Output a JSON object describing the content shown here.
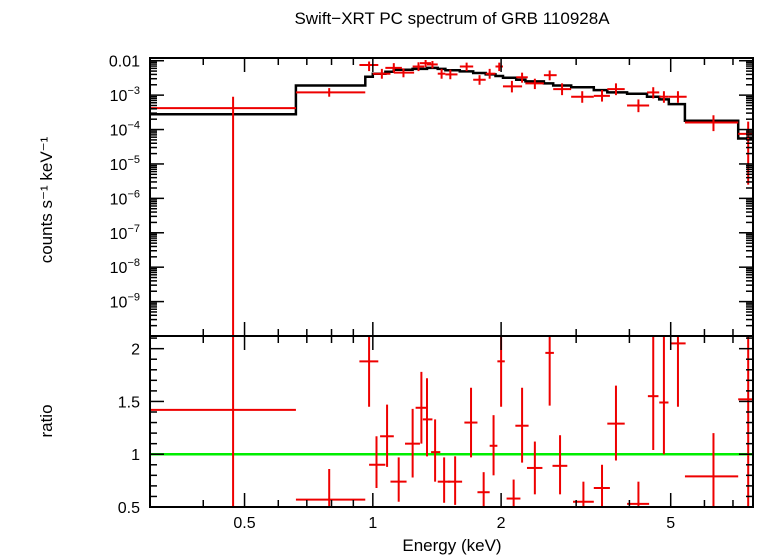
{
  "chart_data": [
    {
      "type": "scatter",
      "title": "Swift−XRT PC spectrum of GRB 110928A",
      "ylabel": "counts s⁻¹ keV⁻¹",
      "xscale": "log",
      "yscale": "log",
      "xlim": [
        0.3,
        7.8
      ],
      "ylim": [
        1e-10,
        0.012
      ],
      "yticks": [
        {
          "value": 0.01,
          "label": "0.01"
        },
        {
          "value": 0.001,
          "base": "10",
          "exp": "−3"
        },
        {
          "value": 0.0001,
          "base": "10",
          "exp": "−4"
        },
        {
          "value": 1e-05,
          "base": "10",
          "exp": "−5"
        },
        {
          "value": 1e-06,
          "base": "10",
          "exp": "−6"
        },
        {
          "value": 1e-07,
          "base": "10",
          "exp": "−7"
        },
        {
          "value": 1e-08,
          "base": "10",
          "exp": "−8"
        },
        {
          "value": 1e-09,
          "base": "10",
          "exp": "−9"
        }
      ],
      "data_color": "#ee0000",
      "model_color": "#000000",
      "series": [
        {
          "kind": "data",
          "points": [
            {
              "x": 0.47,
              "xlo": 0.3,
              "xhi": 0.66,
              "y": 0.00042,
              "ylo": 1e-10,
              "yhi": 0.0009
            },
            {
              "x": 0.79,
              "xlo": 0.66,
              "xhi": 0.96,
              "y": 0.0012,
              "ylo": 0.0009,
              "yhi": 0.0016
            },
            {
              "x": 0.98,
              "xlo": 0.93,
              "xhi": 1.03,
              "y": 0.0075,
              "ylo": 0.005,
              "yhi": 0.0095
            },
            {
              "x": 1.05,
              "xlo": 1.0,
              "xhi": 1.1,
              "y": 0.0042,
              "ylo": 0.003,
              "yhi": 0.0058
            },
            {
              "x": 1.12,
              "xlo": 1.07,
              "xhi": 1.17,
              "y": 0.0062,
              "ylo": 0.0045,
              "yhi": 0.0085
            },
            {
              "x": 1.18,
              "xlo": 1.12,
              "xhi": 1.25,
              "y": 0.0045,
              "ylo": 0.0033,
              "yhi": 0.006
            },
            {
              "x": 1.28,
              "xlo": 1.24,
              "xhi": 1.32,
              "y": 0.0068,
              "ylo": 0.005,
              "yhi": 0.009
            },
            {
              "x": 1.33,
              "xlo": 1.29,
              "xhi": 1.37,
              "y": 0.0085,
              "ylo": 0.0065,
              "yhi": 0.0105
            },
            {
              "x": 1.38,
              "xlo": 1.34,
              "xhi": 1.42,
              "y": 0.0078,
              "ylo": 0.006,
              "yhi": 0.0098
            },
            {
              "x": 1.45,
              "xlo": 1.42,
              "xhi": 1.48,
              "y": 0.0042,
              "ylo": 0.003,
              "yhi": 0.0058
            },
            {
              "x": 1.52,
              "xlo": 1.48,
              "xhi": 1.58,
              "y": 0.004,
              "ylo": 0.0029,
              "yhi": 0.0055
            },
            {
              "x": 1.66,
              "xlo": 1.6,
              "xhi": 1.72,
              "y": 0.0068,
              "ylo": 0.005,
              "yhi": 0.0088
            },
            {
              "x": 1.78,
              "xlo": 1.72,
              "xhi": 1.84,
              "y": 0.0028,
              "ylo": 0.002,
              "yhi": 0.0038
            },
            {
              "x": 1.88,
              "xlo": 1.84,
              "xhi": 1.94,
              "y": 0.0042,
              "ylo": 0.003,
              "yhi": 0.0058
            },
            {
              "x": 1.98,
              "xlo": 1.94,
              "xhi": 2.02,
              "y": 0.0068,
              "ylo": 0.005,
              "yhi": 0.0088
            },
            {
              "x": 2.12,
              "xlo": 2.02,
              "xhi": 2.24,
              "y": 0.0018,
              "ylo": 0.0012,
              "yhi": 0.0026
            },
            {
              "x": 2.24,
              "xlo": 2.17,
              "xhi": 2.31,
              "y": 0.0033,
              "ylo": 0.0023,
              "yhi": 0.0045
            },
            {
              "x": 2.4,
              "xlo": 2.28,
              "xhi": 2.52,
              "y": 0.0022,
              "ylo": 0.0015,
              "yhi": 0.003
            },
            {
              "x": 2.6,
              "xlo": 2.52,
              "xhi": 2.7,
              "y": 0.0038,
              "ylo": 0.0027,
              "yhi": 0.0052
            },
            {
              "x": 2.78,
              "xlo": 2.65,
              "xhi": 2.92,
              "y": 0.0015,
              "ylo": 0.001,
              "yhi": 0.0022
            },
            {
              "x": 3.1,
              "xlo": 2.92,
              "xhi": 3.3,
              "y": 0.0009,
              "ylo": 0.0006,
              "yhi": 0.0013
            },
            {
              "x": 3.45,
              "xlo": 3.3,
              "xhi": 3.6,
              "y": 0.00095,
              "ylo": 0.00065,
              "yhi": 0.0014
            },
            {
              "x": 3.72,
              "xlo": 3.55,
              "xhi": 3.9,
              "y": 0.0015,
              "ylo": 0.001,
              "yhi": 0.0022
            },
            {
              "x": 4.2,
              "xlo": 3.95,
              "xhi": 4.45,
              "y": 0.0005,
              "ylo": 0.00032,
              "yhi": 0.00075
            },
            {
              "x": 4.55,
              "xlo": 4.4,
              "xhi": 4.7,
              "y": 0.0012,
              "ylo": 0.0008,
              "yhi": 0.0017
            },
            {
              "x": 4.82,
              "xlo": 4.7,
              "xhi": 4.95,
              "y": 0.0009,
              "ylo": 0.0006,
              "yhi": 0.0013
            },
            {
              "x": 5.2,
              "xlo": 4.95,
              "xhi": 5.45,
              "y": 0.0009,
              "ylo": 0.0006,
              "yhi": 0.0013
            },
            {
              "x": 6.3,
              "xlo": 5.4,
              "xhi": 7.2,
              "y": 0.00016,
              "ylo": 9e-05,
              "yhi": 0.00026
            },
            {
              "x": 7.6,
              "xlo": 7.2,
              "xhi": 7.8,
              "y": 7.5e-05,
              "ylo": 2.5e-06,
              "yhi": 0.00017
            }
          ]
        },
        {
          "kind": "model",
          "steps": [
            {
              "x0": 0.3,
              "x1": 0.66,
              "y": 0.00028
            },
            {
              "x0": 0.66,
              "x1": 0.96,
              "y": 0.0019
            },
            {
              "x0": 0.96,
              "x1": 1.0,
              "y": 0.0034
            },
            {
              "x0": 1.0,
              "x1": 1.07,
              "y": 0.0042
            },
            {
              "x0": 1.07,
              "x1": 1.12,
              "y": 0.0048
            },
            {
              "x0": 1.12,
              "x1": 1.24,
              "y": 0.0055
            },
            {
              "x0": 1.24,
              "x1": 1.34,
              "y": 0.0058
            },
            {
              "x0": 1.34,
              "x1": 1.42,
              "y": 0.0062
            },
            {
              "x0": 1.42,
              "x1": 1.48,
              "y": 0.0058
            },
            {
              "x0": 1.48,
              "x1": 1.6,
              "y": 0.0053
            },
            {
              "x0": 1.6,
              "x1": 1.72,
              "y": 0.0049
            },
            {
              "x0": 1.72,
              "x1": 1.84,
              "y": 0.0044
            },
            {
              "x0": 1.84,
              "x1": 1.94,
              "y": 0.004
            },
            {
              "x0": 1.94,
              "x1": 2.02,
              "y": 0.0036
            },
            {
              "x0": 2.02,
              "x1": 2.17,
              "y": 0.0032
            },
            {
              "x0": 2.17,
              "x1": 2.28,
              "y": 0.0028
            },
            {
              "x0": 2.28,
              "x1": 2.52,
              "y": 0.0025
            },
            {
              "x0": 2.52,
              "x1": 2.65,
              "y": 0.0022
            },
            {
              "x0": 2.65,
              "x1": 2.92,
              "y": 0.0019
            },
            {
              "x0": 2.92,
              "x1": 3.3,
              "y": 0.0017
            },
            {
              "x0": 3.3,
              "x1": 3.55,
              "y": 0.0014
            },
            {
              "x0": 3.55,
              "x1": 3.95,
              "y": 0.0012
            },
            {
              "x0": 3.95,
              "x1": 4.4,
              "y": 0.0011
            },
            {
              "x0": 4.4,
              "x1": 4.7,
              "y": 0.0009
            },
            {
              "x0": 4.7,
              "x1": 4.95,
              "y": 0.00075
            },
            {
              "x0": 4.95,
              "x1": 5.4,
              "y": 0.00055
            },
            {
              "x0": 5.4,
              "x1": 7.2,
              "y": 0.00018
            },
            {
              "x0": 7.2,
              "x1": 7.8,
              "y": 5.5e-05
            }
          ]
        }
      ]
    },
    {
      "type": "scatter",
      "xlabel": "Energy (keV)",
      "ylabel": "ratio",
      "xscale": "log",
      "xlim": [
        0.3,
        7.8
      ],
      "ylim": [
        0.5,
        2.12
      ],
      "yticks": [
        {
          "value": 0.5,
          "label": "0.5"
        },
        {
          "value": 1,
          "label": "1"
        },
        {
          "value": 1.5,
          "label": "1.5"
        },
        {
          "value": 2,
          "label": "2"
        }
      ],
      "xticks": [
        {
          "value": 0.5,
          "label": "0.5"
        },
        {
          "value": 1,
          "label": "1"
        },
        {
          "value": 2,
          "label": "2"
        },
        {
          "value": 5,
          "label": "5"
        }
      ],
      "reference_line": {
        "y": 1,
        "color": "#00ee00"
      },
      "data_color": "#ee0000",
      "points": [
        {
          "x": 0.47,
          "xlo": 0.3,
          "xhi": 0.66,
          "y": 1.42,
          "ylo": 0.5,
          "yhi": 2.12
        },
        {
          "x": 0.79,
          "xlo": 0.66,
          "xhi": 0.96,
          "y": 0.57,
          "ylo": 0.5,
          "yhi": 0.86
        },
        {
          "x": 0.98,
          "xlo": 0.93,
          "xhi": 1.03,
          "y": 1.88,
          "ylo": 1.45,
          "yhi": 2.12
        },
        {
          "x": 1.02,
          "xlo": 0.98,
          "xhi": 1.07,
          "y": 0.9,
          "ylo": 0.68,
          "yhi": 1.17
        },
        {
          "x": 1.08,
          "xlo": 1.04,
          "xhi": 1.12,
          "y": 1.17,
          "ylo": 0.88,
          "yhi": 1.47
        },
        {
          "x": 1.15,
          "xlo": 1.1,
          "xhi": 1.2,
          "y": 0.74,
          "ylo": 0.55,
          "yhi": 0.97
        },
        {
          "x": 1.24,
          "xlo": 1.19,
          "xhi": 1.29,
          "y": 1.1,
          "ylo": 0.78,
          "yhi": 1.43
        },
        {
          "x": 1.3,
          "xlo": 1.26,
          "xhi": 1.34,
          "y": 1.44,
          "ylo": 1.1,
          "yhi": 1.78
        },
        {
          "x": 1.34,
          "xlo": 1.31,
          "xhi": 1.38,
          "y": 1.33,
          "ylo": 0.98,
          "yhi": 1.72
        },
        {
          "x": 1.4,
          "xlo": 1.37,
          "xhi": 1.44,
          "y": 1.02,
          "ylo": 0.74,
          "yhi": 1.33
        },
        {
          "x": 1.47,
          "xlo": 1.42,
          "xhi": 1.52,
          "y": 0.74,
          "ylo": 0.54,
          "yhi": 0.97
        },
        {
          "x": 1.56,
          "xlo": 1.5,
          "xhi": 1.62,
          "y": 0.74,
          "ylo": 0.52,
          "yhi": 0.98
        },
        {
          "x": 1.7,
          "xlo": 1.64,
          "xhi": 1.76,
          "y": 1.3,
          "ylo": 0.97,
          "yhi": 1.63
        },
        {
          "x": 1.82,
          "xlo": 1.76,
          "xhi": 1.88,
          "y": 0.64,
          "ylo": 0.46,
          "yhi": 0.83
        },
        {
          "x": 1.92,
          "xlo": 1.88,
          "xhi": 1.96,
          "y": 1.08,
          "ylo": 0.8,
          "yhi": 1.37
        },
        {
          "x": 2.0,
          "xlo": 1.96,
          "xhi": 2.04,
          "y": 1.88,
          "ylo": 1.45,
          "yhi": 2.12
        },
        {
          "x": 2.14,
          "xlo": 2.06,
          "xhi": 2.22,
          "y": 0.58,
          "ylo": 0.42,
          "yhi": 0.76
        },
        {
          "x": 2.24,
          "xlo": 2.16,
          "xhi": 2.32,
          "y": 1.27,
          "ylo": 0.92,
          "yhi": 1.63
        },
        {
          "x": 2.4,
          "xlo": 2.3,
          "xhi": 2.5,
          "y": 0.87,
          "ylo": 0.62,
          "yhi": 1.12
        },
        {
          "x": 2.6,
          "xlo": 2.54,
          "xhi": 2.66,
          "y": 1.96,
          "ylo": 1.46,
          "yhi": 2.12
        },
        {
          "x": 2.75,
          "xlo": 2.64,
          "xhi": 2.86,
          "y": 0.89,
          "ylo": 0.62,
          "yhi": 1.18
        },
        {
          "x": 3.12,
          "xlo": 2.95,
          "xhi": 3.3,
          "y": 0.55,
          "ylo": 0.38,
          "yhi": 0.74
        },
        {
          "x": 3.45,
          "xlo": 3.3,
          "xhi": 3.6,
          "y": 0.68,
          "ylo": 0.47,
          "yhi": 0.9
        },
        {
          "x": 3.72,
          "xlo": 3.55,
          "xhi": 3.9,
          "y": 1.29,
          "ylo": 0.94,
          "yhi": 1.65
        },
        {
          "x": 4.2,
          "xlo": 3.95,
          "xhi": 4.45,
          "y": 0.53,
          "ylo": 0.34,
          "yhi": 0.74
        },
        {
          "x": 4.55,
          "xlo": 4.42,
          "xhi": 4.68,
          "y": 1.55,
          "ylo": 1.04,
          "yhi": 2.12
        },
        {
          "x": 4.82,
          "xlo": 4.7,
          "xhi": 4.94,
          "y": 1.49,
          "ylo": 1.0,
          "yhi": 2.12
        },
        {
          "x": 5.2,
          "xlo": 5.0,
          "xhi": 5.42,
          "y": 2.05,
          "ylo": 1.45,
          "yhi": 2.12
        },
        {
          "x": 6.3,
          "xlo": 5.4,
          "xhi": 7.2,
          "y": 0.79,
          "ylo": 0.5,
          "yhi": 1.2
        },
        {
          "x": 7.6,
          "xlo": 7.2,
          "xhi": 7.8,
          "y": 1.52,
          "ylo": 0.5,
          "yhi": 2.12
        }
      ]
    }
  ]
}
